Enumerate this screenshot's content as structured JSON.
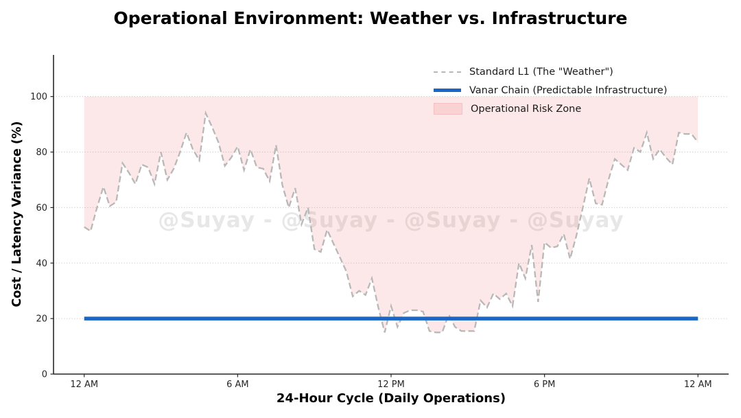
{
  "figure": {
    "title": "Operational Environment: Weather vs. Infrastructure",
    "watermark": "@Suyay - @Suyay - @Suyay - @Suyay"
  },
  "legend": {
    "position": "upper-right-inside",
    "items": [
      {
        "label": "Standard L1 (The \"Weather\")",
        "swatch": "dashed-gray-line"
      },
      {
        "label": "Vanar Chain (Predictable Infrastructure)",
        "swatch": "solid-blue-line"
      },
      {
        "label": "Operational Risk Zone",
        "swatch": "pink-fill-patch"
      }
    ]
  },
  "colors": {
    "weather_line": "#b8b8b8",
    "vanar_line": "#1a66c5",
    "risk_fill": "#f08080",
    "risk_fill_opacity": 0.18,
    "grid": "#c9c9c9",
    "spine": "#262626",
    "tick_label": "#262626",
    "watermark": "rgba(110,105,105,0.16)"
  },
  "chart_data": {
    "type": "line",
    "title": "Operational Environment: Weather vs. Infrastructure",
    "xlabel": "24-Hour Cycle (Daily Operations)",
    "ylabel": "Cost / Latency Variance (%)",
    "xlim": [
      -1.2,
      25.2
    ],
    "ylim": [
      0,
      115
    ],
    "grid": "horizontal-dotted",
    "legend_position": "upper right",
    "xticks": [
      {
        "pos": 0,
        "label": "12 AM"
      },
      {
        "pos": 6,
        "label": "6 AM"
      },
      {
        "pos": 12,
        "label": "12 PM"
      },
      {
        "pos": 18,
        "label": "6 PM"
      },
      {
        "pos": 24,
        "label": "12 AM"
      }
    ],
    "yticks": [
      {
        "pos": 0,
        "label": "0"
      },
      {
        "pos": 20,
        "label": "20"
      },
      {
        "pos": 40,
        "label": "40"
      },
      {
        "pos": 60,
        "label": "60"
      },
      {
        "pos": 80,
        "label": "80"
      },
      {
        "pos": 100,
        "label": "100"
      }
    ],
    "series": [
      {
        "name": "Standard L1 (The \"Weather\")",
        "style": "dashed",
        "color": "#b8b8b8",
        "x_unit": "hours",
        "x_start": 0,
        "x_step": 0.25,
        "values": [
          53,
          51.5,
          60,
          67.5,
          60.5,
          62,
          76,
          72.5,
          68.5,
          75.5,
          74.5,
          68.5,
          80,
          70,
          74,
          80,
          87,
          81,
          77,
          94,
          89,
          83.5,
          75,
          78,
          82,
          73.5,
          81,
          74.5,
          74,
          69.5,
          82.5,
          68,
          60,
          67,
          54,
          60,
          45,
          44,
          52,
          47,
          42,
          37,
          28,
          30,
          28.5,
          34.5,
          24,
          15,
          24.5,
          17,
          22,
          23,
          23,
          22.5,
          15.5,
          15,
          15,
          21.5,
          17,
          15.5,
          15.5,
          15.5,
          26.5,
          24,
          29,
          27,
          29,
          24.5,
          40,
          34.5,
          46.5,
          26,
          47.5,
          45.5,
          46,
          50.5,
          41.5,
          50,
          60,
          70.5,
          61.5,
          61,
          70,
          77.5,
          75.5,
          73.5,
          81.5,
          80,
          87,
          77.5,
          81,
          78,
          75.5,
          87,
          86.5,
          86.5,
          83.5
        ]
      },
      {
        "name": "Vanar Chain (Predictable Infrastructure)",
        "style": "solid-thick",
        "color": "#1a66c5",
        "x": [
          0,
          24
        ],
        "values": [
          20,
          20
        ]
      },
      {
        "name": "Operational Risk Zone",
        "style": "fill-between",
        "fill_color": "#f08080",
        "fill_opacity": 0.18,
        "upper_bound": 100,
        "lower_bound_series": "Standard L1 (The \"Weather\")"
      }
    ]
  }
}
